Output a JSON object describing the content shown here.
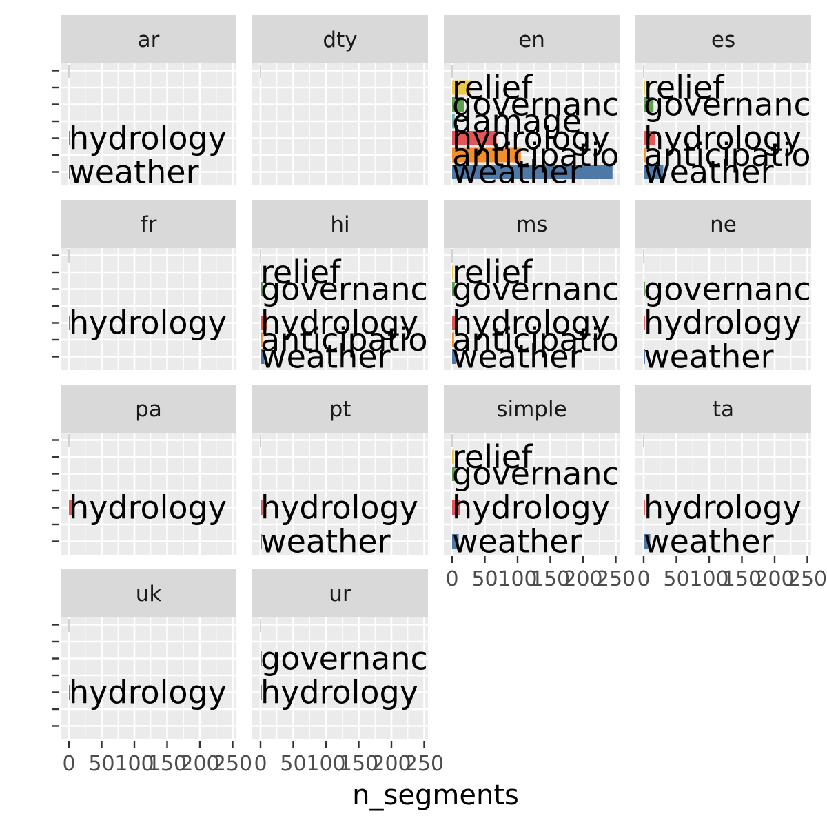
{
  "chart_data": {
    "type": "bar",
    "orientation": "horizontal",
    "facet_wrap": true,
    "facet_ncol": 4,
    "xlabel": "n_segments",
    "ylabel": "",
    "xlim": [
      0,
      260
    ],
    "x_ticks": [
      "0",
      "50",
      "100",
      "150",
      "200",
      "250"
    ],
    "x_tick_values": [
      0,
      50,
      100,
      150,
      200,
      250
    ],
    "categories": [
      "relief",
      "governance",
      "damage",
      "hydrology",
      "anticipation",
      "weather"
    ],
    "category_colors": {
      "relief": "#ECC949",
      "governance": "#5FA04D",
      "damage": "#78B7B2",
      "hydrology": "#E25659",
      "anticipation": "#F28E2B",
      "weather": "#4E79A7"
    },
    "grid": true,
    "legend": "none",
    "panel_background": "#EBEBEB",
    "strip_background": "#D9D9D9",
    "facets": [
      {
        "name": "ar",
        "bars": [
          {
            "category": "hydrology",
            "value": 1,
            "label": "hydrology"
          },
          {
            "category": "weather",
            "value": 1,
            "label": "weather"
          }
        ]
      },
      {
        "name": "dty",
        "bars": []
      },
      {
        "name": "en",
        "bars": [
          {
            "category": "relief",
            "value": 28,
            "label": "relief"
          },
          {
            "category": "governance",
            "value": 18,
            "label": "governanc"
          },
          {
            "category": "damage",
            "value": 4,
            "label": "damage"
          },
          {
            "category": "hydrology",
            "value": 68,
            "label": "hydrology"
          },
          {
            "category": "anticipation",
            "value": 105,
            "label": "anticipatio"
          },
          {
            "category": "weather",
            "value": 245,
            "label": "weather"
          }
        ]
      },
      {
        "name": "es",
        "bars": [
          {
            "category": "relief",
            "value": 2,
            "label": "relief"
          },
          {
            "category": "governance",
            "value": 15,
            "label": "governanc"
          },
          {
            "category": "hydrology",
            "value": 17,
            "label": "hydrology"
          },
          {
            "category": "anticipation",
            "value": 3,
            "label": "anticipatio"
          },
          {
            "category": "weather",
            "value": 30,
            "label": "weather"
          }
        ]
      },
      {
        "name": "fr",
        "bars": [
          {
            "category": "hydrology",
            "value": 2,
            "label": "hydrology"
          }
        ]
      },
      {
        "name": "hi",
        "bars": [
          {
            "category": "relief",
            "value": 1,
            "label": "relief"
          },
          {
            "category": "governance",
            "value": 4,
            "label": "governanc"
          },
          {
            "category": "hydrology",
            "value": 10,
            "label": "hydrology"
          },
          {
            "category": "anticipation",
            "value": 3,
            "label": "anticipatio"
          },
          {
            "category": "weather",
            "value": 6,
            "label": "weather"
          }
        ]
      },
      {
        "name": "ms",
        "bars": [
          {
            "category": "relief",
            "value": 2,
            "label": "relief"
          },
          {
            "category": "governance",
            "value": 4,
            "label": "governanc"
          },
          {
            "category": "hydrology",
            "value": 8,
            "label": "hydrology"
          },
          {
            "category": "anticipation",
            "value": 3,
            "label": "anticipatio"
          },
          {
            "category": "weather",
            "value": 6,
            "label": "weather"
          }
        ]
      },
      {
        "name": "ne",
        "bars": [
          {
            "category": "governance",
            "value": 2,
            "label": "governanc"
          },
          {
            "category": "hydrology",
            "value": 2,
            "label": "hydrology"
          },
          {
            "category": "weather",
            "value": 2,
            "label": "weather"
          }
        ]
      },
      {
        "name": "pa",
        "bars": [
          {
            "category": "hydrology",
            "value": 6,
            "label": "hydrology"
          }
        ]
      },
      {
        "name": "pt",
        "bars": [
          {
            "category": "hydrology",
            "value": 3,
            "label": "hydrology"
          },
          {
            "category": "weather",
            "value": 2,
            "label": "weather"
          }
        ]
      },
      {
        "name": "simple",
        "bars": [
          {
            "category": "relief",
            "value": 3,
            "label": "relief"
          },
          {
            "category": "governance",
            "value": 5,
            "label": "governanc"
          },
          {
            "category": "hydrology",
            "value": 12,
            "label": "hydrology"
          },
          {
            "category": "weather",
            "value": 10,
            "label": "weather"
          }
        ]
      },
      {
        "name": "ta",
        "bars": [
          {
            "category": "hydrology",
            "value": 2,
            "label": "hydrology"
          },
          {
            "category": "weather",
            "value": 10,
            "label": "weather"
          }
        ]
      },
      {
        "name": "uk",
        "bars": [
          {
            "category": "hydrology",
            "value": 2,
            "label": "hydrology"
          }
        ]
      },
      {
        "name": "ur",
        "bars": [
          {
            "category": "governance",
            "value": 2,
            "label": "governanc"
          },
          {
            "category": "hydrology",
            "value": 2,
            "label": "hydrology"
          }
        ]
      }
    ]
  }
}
